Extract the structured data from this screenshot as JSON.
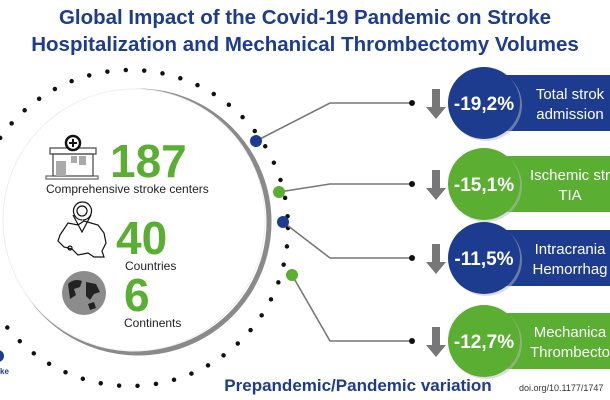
{
  "title": {
    "line1": "Global Impact of the Covid-19 Pandemic on Stroke",
    "line2": "Hospitalization and Mechanical Thrombectomy Volumes"
  },
  "stats": [
    {
      "value": "187",
      "label": "Comprehensive stroke centers",
      "icon": "hospital-icon"
    },
    {
      "value": "40",
      "label": "Countries",
      "icon": "map-pin-icon"
    },
    {
      "value": "6",
      "label": "Continents",
      "icon": "globe-icon"
    }
  ],
  "variations": [
    {
      "pct": "-19,2%",
      "line1": "Total strok",
      "line2": "admission",
      "color": "#1d3c8f"
    },
    {
      "pct": "-15,1%",
      "line1": "Ischemic str",
      "line2": "TIA",
      "color": "#5aae32"
    },
    {
      "pct": "-11,5%",
      "line1": "Intracrania",
      "line2": "Hemorrhag",
      "color": "#1d3c8f"
    },
    {
      "pct": "-12,7%",
      "line1": "Mechanica",
      "line2": "Thrombecto",
      "color": "#5aae32"
    }
  ],
  "footer": {
    "caption": "Prepandemic/Pandemic variation",
    "doi": "doi.org/10.1177/1747",
    "logo_text": "ke"
  },
  "colors": {
    "blue": "#1d3c8f",
    "green": "#5aae32",
    "gray": "#777777"
  }
}
